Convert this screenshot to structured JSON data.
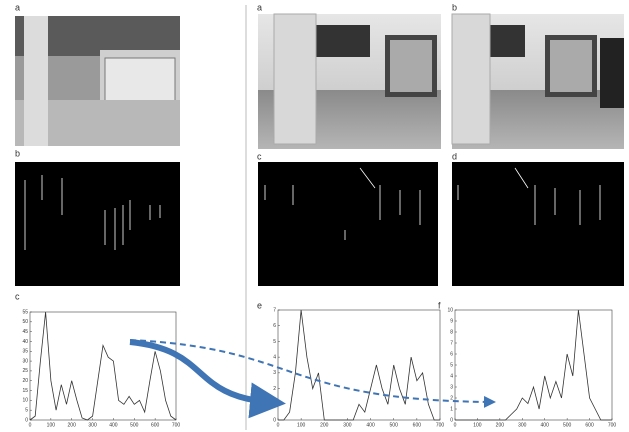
{
  "labels": [
    "a",
    "b",
    "c",
    "a",
    "b",
    "c",
    "d",
    "e",
    "f"
  ],
  "chart_data": [
    {
      "type": "line",
      "color": "#333333",
      "x": [
        0,
        25,
        50,
        75,
        100,
        125,
        150,
        175,
        200,
        225,
        250,
        275,
        300,
        325,
        350,
        375,
        400,
        425,
        450,
        475,
        500,
        525,
        550,
        575,
        600,
        625,
        650,
        675,
        700
      ],
      "values": [
        0,
        2,
        30,
        55,
        20,
        5,
        18,
        8,
        20,
        10,
        1,
        0,
        2,
        20,
        38,
        32,
        30,
        10,
        8,
        12,
        8,
        10,
        4,
        20,
        35,
        25,
        10,
        2,
        0
      ],
      "xlim": [
        0,
        700
      ],
      "ylim": [
        0,
        55
      ],
      "xticks": [
        0,
        100,
        200,
        300,
        400,
        500,
        600,
        700
      ],
      "yticks": [
        0,
        5,
        10,
        15,
        20,
        25,
        30,
        35,
        40,
        45,
        50,
        55
      ]
    },
    {
      "type": "line",
      "color": "#333333",
      "x": [
        0,
        25,
        50,
        75,
        100,
        125,
        150,
        175,
        200,
        225,
        250,
        275,
        300,
        325,
        350,
        375,
        400,
        425,
        450,
        475,
        500,
        525,
        550,
        575,
        600,
        625,
        650,
        675,
        700
      ],
      "values": [
        0,
        0,
        0.5,
        3,
        7,
        4,
        2,
        3,
        0,
        0,
        0,
        0,
        0,
        0,
        1,
        0.5,
        2,
        3.5,
        2,
        1,
        3.5,
        2,
        1,
        4,
        2.5,
        3,
        1,
        0,
        0
      ],
      "xlim": [
        0,
        700
      ],
      "ylim": [
        0,
        7
      ],
      "xticks": [
        0,
        100,
        200,
        300,
        400,
        500,
        600,
        700
      ],
      "yticks": [
        0,
        1,
        2,
        3,
        4,
        5,
        6,
        7
      ]
    },
    {
      "type": "line",
      "color": "#333333",
      "x": [
        0,
        25,
        50,
        75,
        100,
        125,
        150,
        175,
        200,
        225,
        250,
        275,
        300,
        325,
        350,
        375,
        400,
        425,
        450,
        475,
        500,
        525,
        550,
        575,
        600,
        625,
        650,
        675,
        700
      ],
      "values": [
        0,
        0,
        0,
        0,
        0,
        0,
        0,
        0,
        0,
        0,
        0.5,
        1,
        2,
        1.5,
        3,
        1,
        4,
        2,
        3.5,
        2,
        6,
        4,
        10,
        6,
        2,
        1,
        0,
        0,
        0
      ],
      "xlim": [
        0,
        700
      ],
      "ylim": [
        0,
        10
      ],
      "xticks": [
        0,
        100,
        200,
        300,
        400,
        500,
        600,
        700
      ],
      "yticks": [
        0,
        1,
        2,
        3,
        4,
        5,
        6,
        7,
        8,
        9,
        10
      ]
    }
  ]
}
